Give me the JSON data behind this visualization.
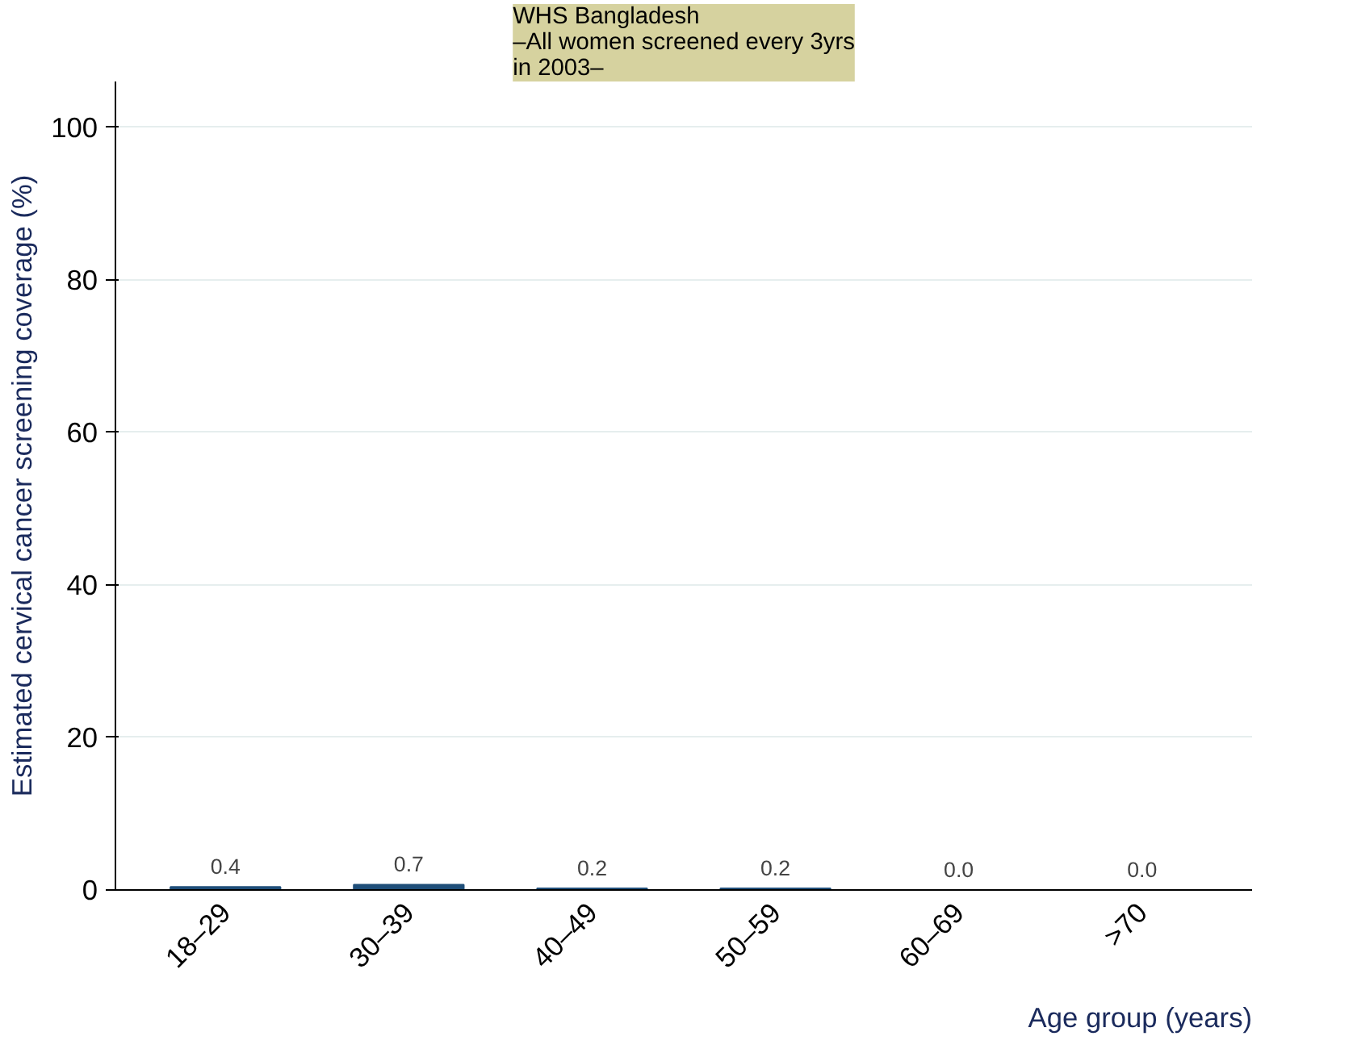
{
  "chart_data": {
    "type": "bar",
    "subtitle": "WHS Bangladesh\n–All women screened every 3yrs\nin 2003–",
    "xlabel": "Age group (years)",
    "ylabel": "Estimated cervical cancer screening coverage (%)",
    "categories": [
      "18–29",
      "30–39",
      "40–49",
      "50–59",
      "60–69",
      ">70"
    ],
    "values": [
      0.4,
      0.7,
      0.2,
      0.2,
      0.0,
      0.0
    ],
    "color": "#1f4e79",
    "ylim": [
      0,
      106
    ],
    "yticks": [
      0,
      20,
      40,
      60,
      80,
      100
    ],
    "grid": "y",
    "value_labels": [
      "0.4",
      "0.7",
      "0.2",
      "0.2",
      "0.0",
      "0.0"
    ]
  }
}
